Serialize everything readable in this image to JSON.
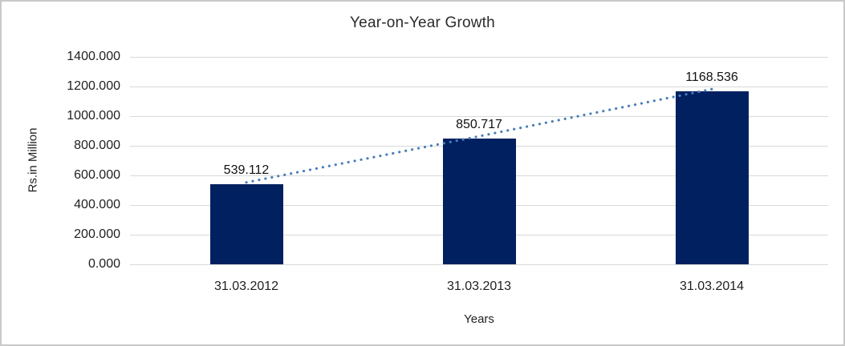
{
  "chart_data": {
    "type": "bar",
    "title": "Year-on-Year Growth",
    "xlabel": "Years",
    "ylabel": "Rs.in Million",
    "categories": [
      "31.03.2012",
      "31.03.2013",
      "31.03.2014"
    ],
    "values": [
      539.112,
      850.717,
      1168.536
    ],
    "data_labels": [
      "539.112",
      "850.717",
      "1168.536"
    ],
    "y_ticks": [
      "0.000",
      "200.000",
      "400.000",
      "600.000",
      "800.000",
      "1000.000",
      "1200.000",
      "1400.000"
    ],
    "ylim": [
      0,
      1400
    ],
    "grid": true,
    "legend": "none",
    "trendline": {
      "style": "dotted",
      "through": "bar-tops"
    },
    "colors": {
      "bar": "#002060",
      "trendline": "#4a7ebb",
      "gridline": "#d9d9d9",
      "text": "#1f1f1f",
      "frame_border": "#c9c9c9",
      "background": "#ffffff"
    }
  }
}
